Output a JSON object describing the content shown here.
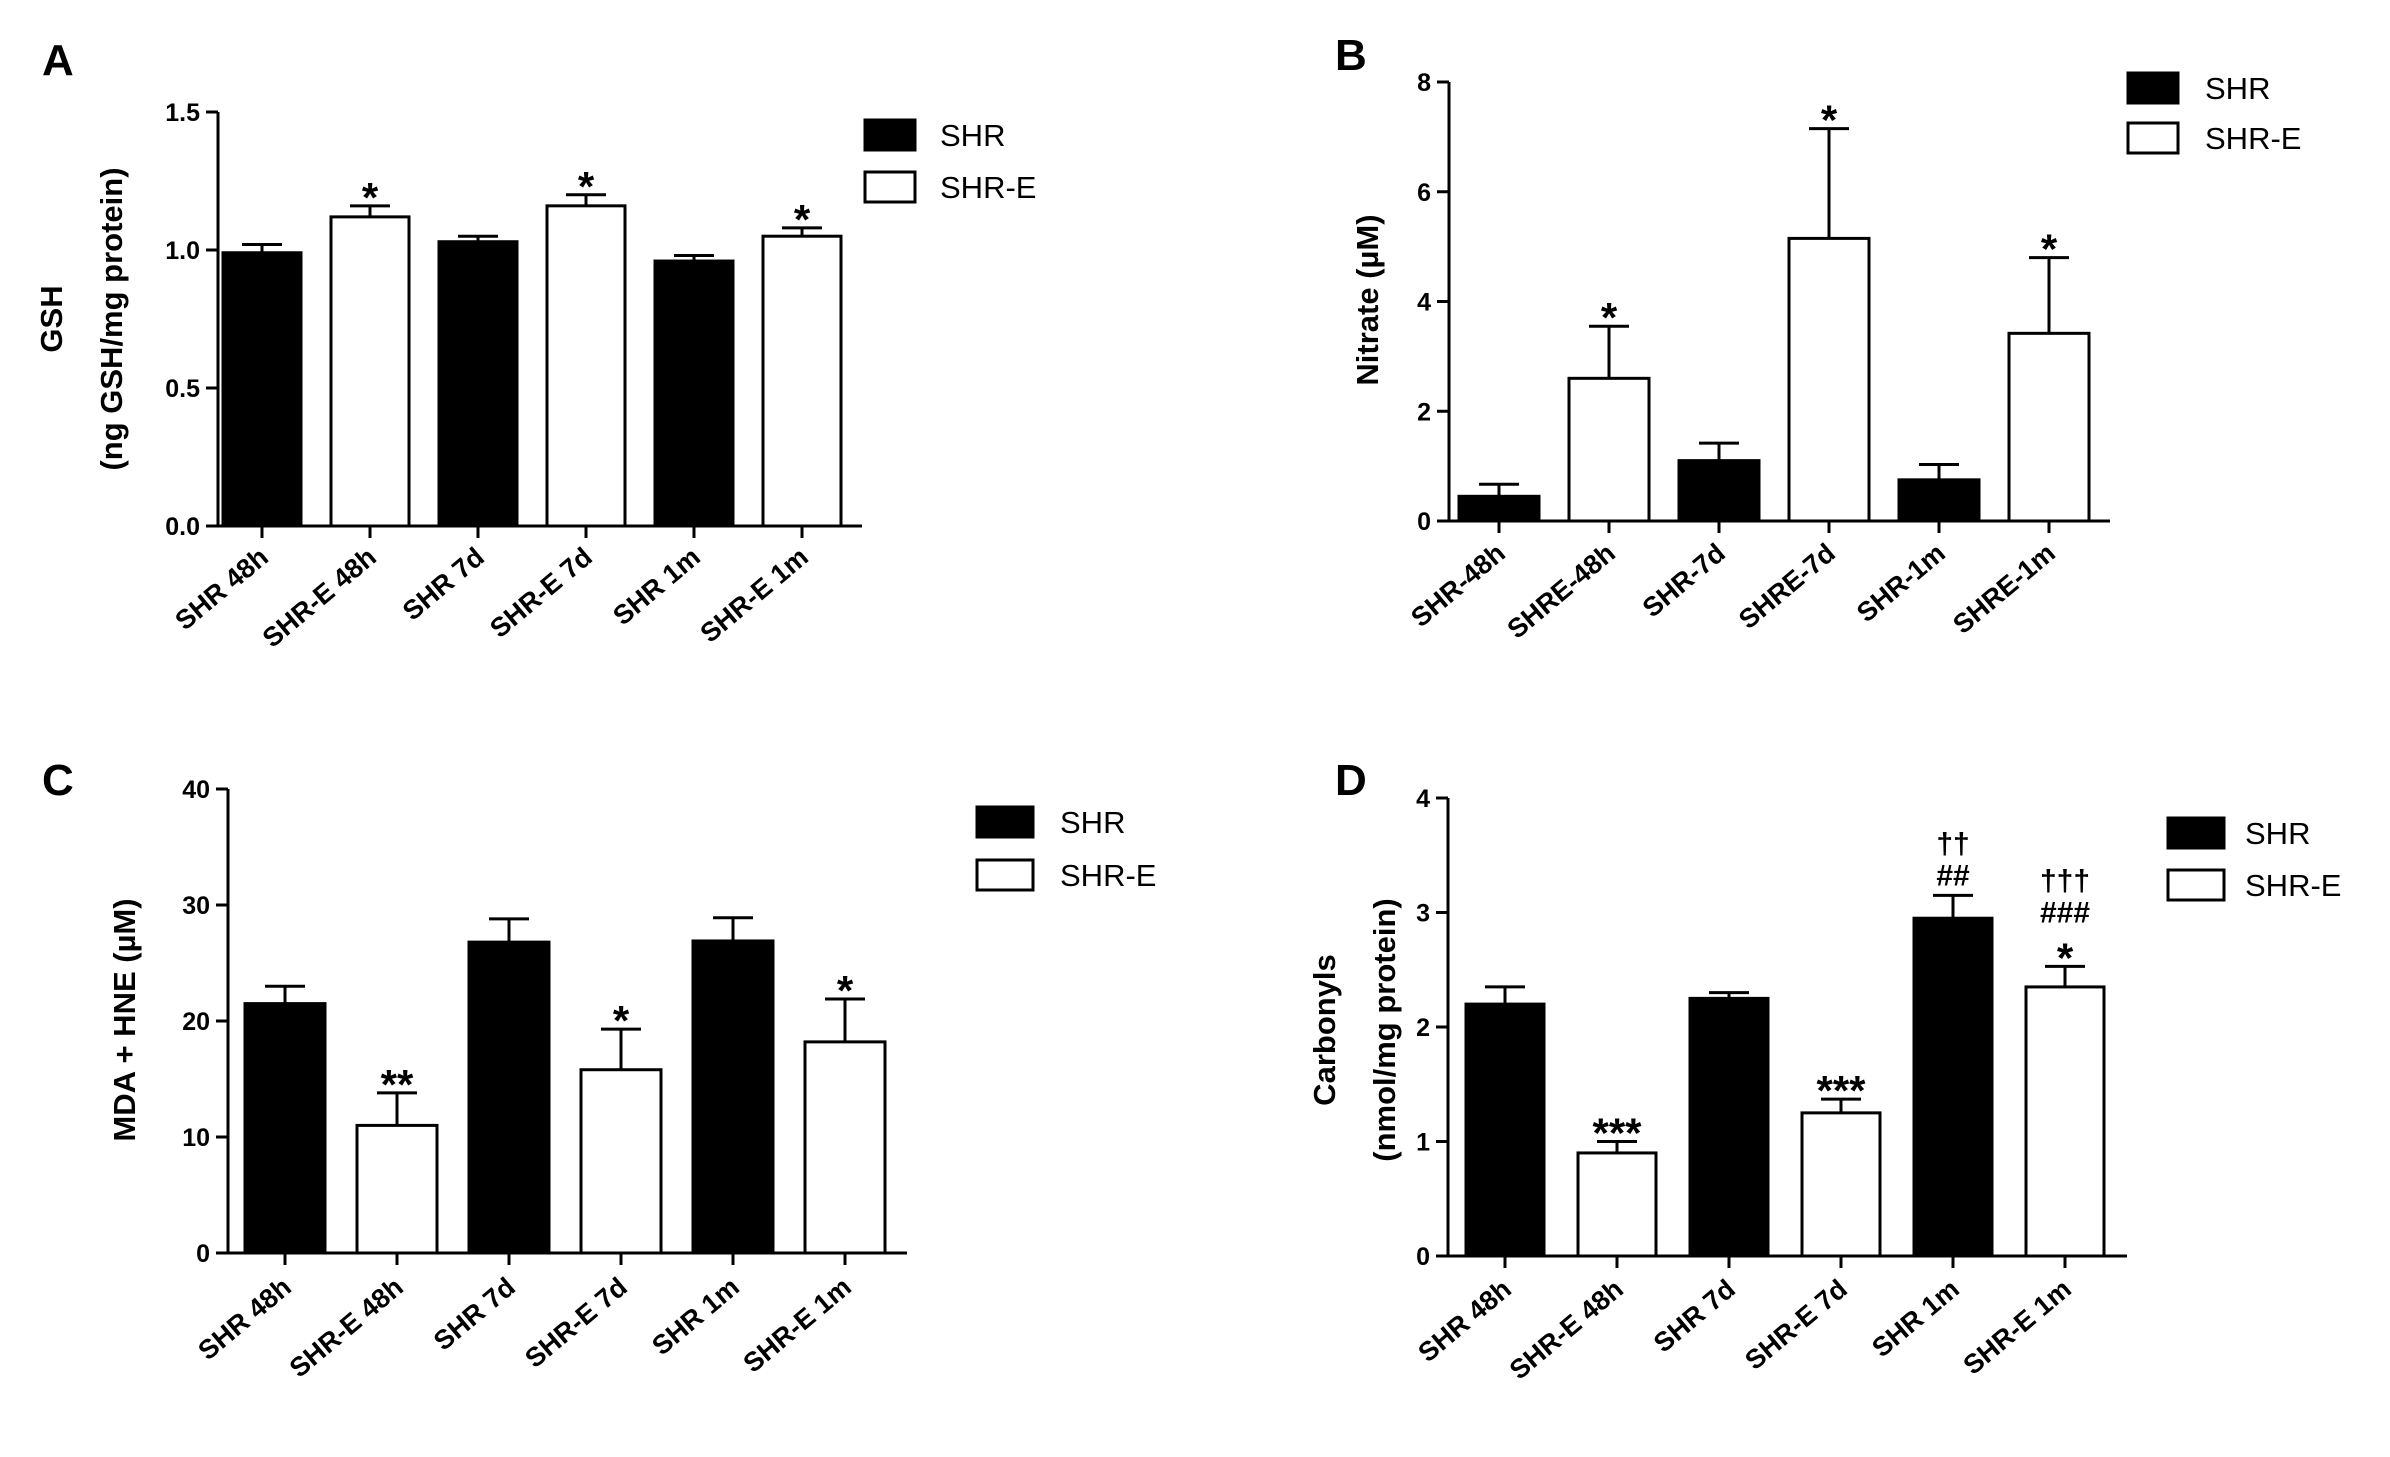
{
  "colors": {
    "shr": "#000000",
    "shr_e": "#ffffff",
    "axis": "#000000"
  },
  "chart_data": [
    {
      "panel": "A",
      "type": "bar",
      "title": "",
      "ylabel_lines": [
        "GSH",
        "(ng GSH/mg protein)"
      ],
      "xlabel": "",
      "ylim": [
        0,
        1.5
      ],
      "yticks": [
        0,
        0.5,
        1.0,
        1.5
      ],
      "ytick_labels": [
        "0.0",
        "0.5",
        "1.0",
        "1.5"
      ],
      "categories": [
        "SHR 48h",
        "SHR-E 48h",
        "SHR 7d",
        "SHR-E 7d",
        "SHR 1m",
        "SHR-E 1m"
      ],
      "values": [
        0.99,
        1.12,
        1.03,
        1.16,
        0.96,
        1.05
      ],
      "errors": [
        0.03,
        0.04,
        0.02,
        0.04,
        0.02,
        0.03
      ],
      "group": [
        "SHR",
        "SHR-E",
        "SHR",
        "SHR-E",
        "SHR",
        "SHR-E"
      ],
      "annotations": [
        [],
        [
          "*"
        ],
        [],
        [
          "*"
        ],
        [],
        [
          "*"
        ]
      ],
      "legend": [
        "SHR",
        "SHR-E"
      ]
    },
    {
      "panel": "B",
      "type": "bar",
      "title": "",
      "ylabel_lines": [
        "Nitrate (µM)"
      ],
      "xlabel": "",
      "ylim": [
        0,
        8
      ],
      "yticks": [
        0,
        2,
        4,
        6,
        8
      ],
      "ytick_labels": [
        "0",
        "2",
        "4",
        "6",
        "8"
      ],
      "categories": [
        "SHR-48h",
        "SHRE-48h",
        "SHR-7d",
        "SHRE-7d",
        "SHR-1m",
        "SHRE-1m"
      ],
      "values": [
        0.45,
        2.6,
        1.1,
        5.15,
        0.75,
        3.42
      ],
      "errors": [
        0.22,
        0.95,
        0.32,
        2.0,
        0.28,
        1.38
      ],
      "group": [
        "SHR",
        "SHR-E",
        "SHR",
        "SHR-E",
        "SHR",
        "SHR-E"
      ],
      "annotations": [
        [],
        [
          "*"
        ],
        [],
        [
          "*"
        ],
        [],
        [
          "*"
        ]
      ],
      "legend": [
        "SHR",
        "SHR-E"
      ]
    },
    {
      "panel": "C",
      "type": "bar",
      "title": "",
      "ylabel_lines": [
        "MDA + HNE (µM)"
      ],
      "xlabel": "",
      "ylim": [
        0,
        40
      ],
      "yticks": [
        0,
        10,
        20,
        30,
        40
      ],
      "ytick_labels": [
        "0",
        "10",
        "20",
        "30",
        "40"
      ],
      "categories": [
        "SHR 48h",
        "SHR-E 48h",
        "SHR 7d",
        "SHR-E 7d",
        "SHR 1m",
        "SHR-E 1m"
      ],
      "values": [
        21.5,
        11,
        26.8,
        15.8,
        26.9,
        18.2
      ],
      "errors": [
        1.5,
        2.8,
        2.0,
        3.5,
        2.0,
        3.7
      ],
      "group": [
        "SHR",
        "SHR-E",
        "SHR",
        "SHR-E",
        "SHR",
        "SHR-E"
      ],
      "annotations": [
        [],
        [
          "**"
        ],
        [],
        [
          "*"
        ],
        [],
        [
          "*"
        ]
      ],
      "legend": [
        "SHR",
        "SHR-E"
      ]
    },
    {
      "panel": "D",
      "type": "bar",
      "title": "",
      "ylabel_lines": [
        "Carbonyls",
        "(nmol/mg protein)"
      ],
      "xlabel": "",
      "ylim": [
        0,
        4
      ],
      "yticks": [
        0,
        1,
        2,
        3,
        4
      ],
      "ytick_labels": [
        "0",
        "1",
        "2",
        "3",
        "4"
      ],
      "categories": [
        "SHR 48h",
        "SHR-E 48h",
        "SHR 7d",
        "SHR-E 7d",
        "SHR 1m",
        "SHR-E 1m"
      ],
      "values": [
        2.2,
        0.9,
        2.25,
        1.25,
        2.95,
        2.35
      ],
      "errors": [
        0.15,
        0.1,
        0.05,
        0.12,
        0.2,
        0.18
      ],
      "group": [
        "SHR",
        "SHR-E",
        "SHR",
        "SHR-E",
        "SHR",
        "SHR-E"
      ],
      "annotations": [
        [],
        [
          "***"
        ],
        [],
        [
          "***"
        ],
        [
          "††",
          "##"
        ],
        [
          "†††",
          "###",
          "*"
        ]
      ],
      "legend": [
        "SHR",
        "SHR-E"
      ]
    }
  ]
}
